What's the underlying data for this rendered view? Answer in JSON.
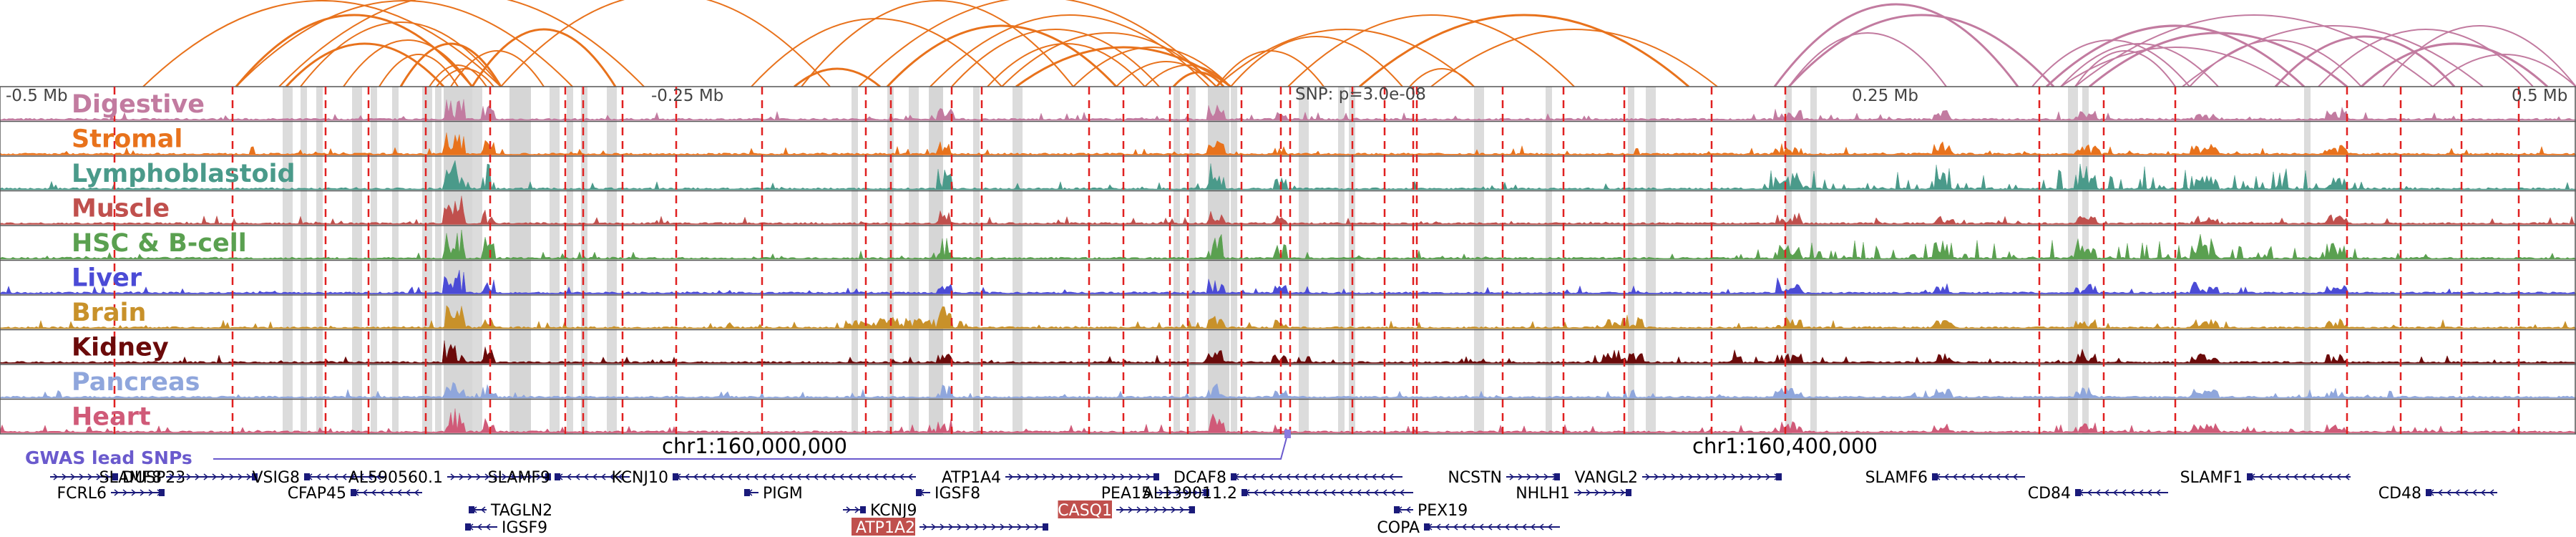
{
  "axis": {
    "neg_half": "-0.5 Mb",
    "neg_quarter": "-0.25 Mb",
    "snp": "SNP: p=3.0e-08",
    "pos_quarter": "0.25 Mb",
    "pos_half": "0.5 Mb"
  },
  "tracks": [
    {
      "name": "Digestive",
      "color": "#c27ba0"
    },
    {
      "name": "Stromal",
      "color": "#e8721c"
    },
    {
      "name": "Lymphoblastoid",
      "color": "#4a9a8a"
    },
    {
      "name": "Muscle",
      "color": "#c0504d"
    },
    {
      "name": "HSC & B-cell",
      "color": "#5aa050"
    },
    {
      "name": "Liver",
      "color": "#4b4bd6"
    },
    {
      "name": "Brain",
      "color": "#c8912a"
    },
    {
      "name": "Kidney",
      "color": "#6b0a0a"
    },
    {
      "name": "Pancreas",
      "color": "#8fa6dc"
    },
    {
      "name": "Heart",
      "color": "#d05a78"
    }
  ],
  "gwas": {
    "label": "GWAS lead SNPs",
    "color": "#6a5acd"
  },
  "coords": {
    "left": "chr1:160,000,000",
    "right": "chr1:160,400,000"
  },
  "genes": [
    {
      "name": "DUSP23",
      "strand": "+",
      "row": 0
    },
    {
      "name": "SLAMF8",
      "strand": "+",
      "row": 0
    },
    {
      "name": "VSIG8",
      "strand": "-",
      "row": 0
    },
    {
      "name": "AL590560.1",
      "strand": "+",
      "row": 0
    },
    {
      "name": "SLAMF9",
      "strand": "-",
      "row": 0
    },
    {
      "name": "KCNJ10",
      "strand": "-",
      "row": 0
    },
    {
      "name": "ATP1A4",
      "strand": "+",
      "row": 0
    },
    {
      "name": "DCAF8",
      "strand": "-",
      "row": 0
    },
    {
      "name": "NCSTN",
      "strand": "+",
      "row": 0
    },
    {
      "name": "VANGL2",
      "strand": "+",
      "row": 0
    },
    {
      "name": "SLAMF6",
      "strand": "-",
      "row": 0
    },
    {
      "name": "SLAMF1",
      "strand": "-",
      "row": 0
    },
    {
      "name": "FCRL6",
      "strand": "+",
      "row": 1
    },
    {
      "name": "CFAP45",
      "strand": "-",
      "row": 1
    },
    {
      "name": "PIGM",
      "strand": "-",
      "row": 1
    },
    {
      "name": "IGSF8",
      "strand": "-",
      "row": 1
    },
    {
      "name": "PEA15",
      "strand": "+",
      "row": 1
    },
    {
      "name": "AL139011.2",
      "strand": "-",
      "row": 1
    },
    {
      "name": "NHLH1",
      "strand": "+",
      "row": 1
    },
    {
      "name": "CD84",
      "strand": "-",
      "row": 1
    },
    {
      "name": "CD48",
      "strand": "-",
      "row": 1
    },
    {
      "name": "TAGLN2",
      "strand": "-",
      "row": 2
    },
    {
      "name": "KCNJ9",
      "strand": "+",
      "row": 2
    },
    {
      "name": "CASQ1",
      "strand": "+",
      "row": 2,
      "highlight": true
    },
    {
      "name": "PEX19",
      "strand": "-",
      "row": 2
    },
    {
      "name": "IGSF9",
      "strand": "-",
      "row": 3
    },
    {
      "name": "ATP1A2",
      "strand": "+",
      "row": 3,
      "highlight": true
    },
    {
      "name": "COPA",
      "strand": "-",
      "row": 3
    }
  ],
  "colors": {
    "highlight_box": "#c0504d",
    "gene": "#1a1a7a",
    "dash": "#e02020",
    "shade": "#cccccc"
  }
}
